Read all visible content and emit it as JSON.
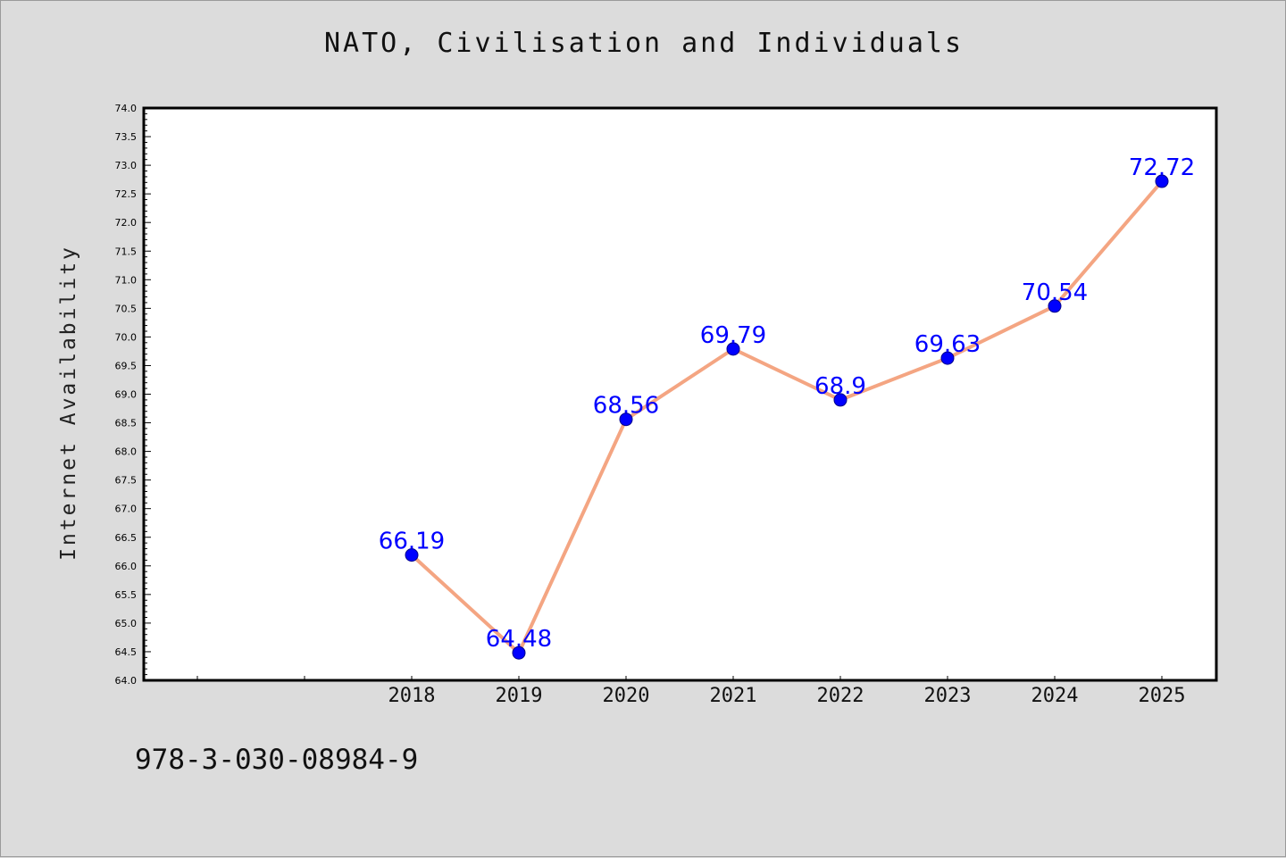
{
  "footer": {
    "isbn": "978-3-030-08984-9"
  },
  "colors": {
    "background": "#dcdcdc",
    "plot_area": "#ffffff",
    "line": "#f4a582",
    "marker": "#0000ff",
    "data_label": "#0000ff"
  },
  "chart_data": {
    "type": "line",
    "title": "NATO, Civilisation and Individuals",
    "xlabel": "",
    "ylabel": "Internet Availability",
    "categories": [
      "2018",
      "2019",
      "2020",
      "2021",
      "2022",
      "2023",
      "2024",
      "2025"
    ],
    "series": [
      {
        "values": [
          66.19,
          64.48,
          68.56,
          69.79,
          68.9,
          69.63,
          70.54,
          72.72
        ],
        "labels": [
          "66.19",
          "64.48",
          "68.56",
          "69.79",
          "68.9",
          "69.63",
          "70.54",
          "72.72"
        ]
      }
    ],
    "ylim": [
      64.0,
      74.0
    ],
    "yticks": [
      "64.0",
      "64.5",
      "65.0",
      "65.5",
      "66.0",
      "66.5",
      "67.0",
      "67.5",
      "68.0",
      "68.5",
      "69.0",
      "69.5",
      "70.0",
      "70.5",
      "71.0",
      "71.5",
      "72.0",
      "72.5",
      "73.0",
      "73.5",
      "74.0"
    ],
    "grid": false,
    "legend": "none"
  }
}
